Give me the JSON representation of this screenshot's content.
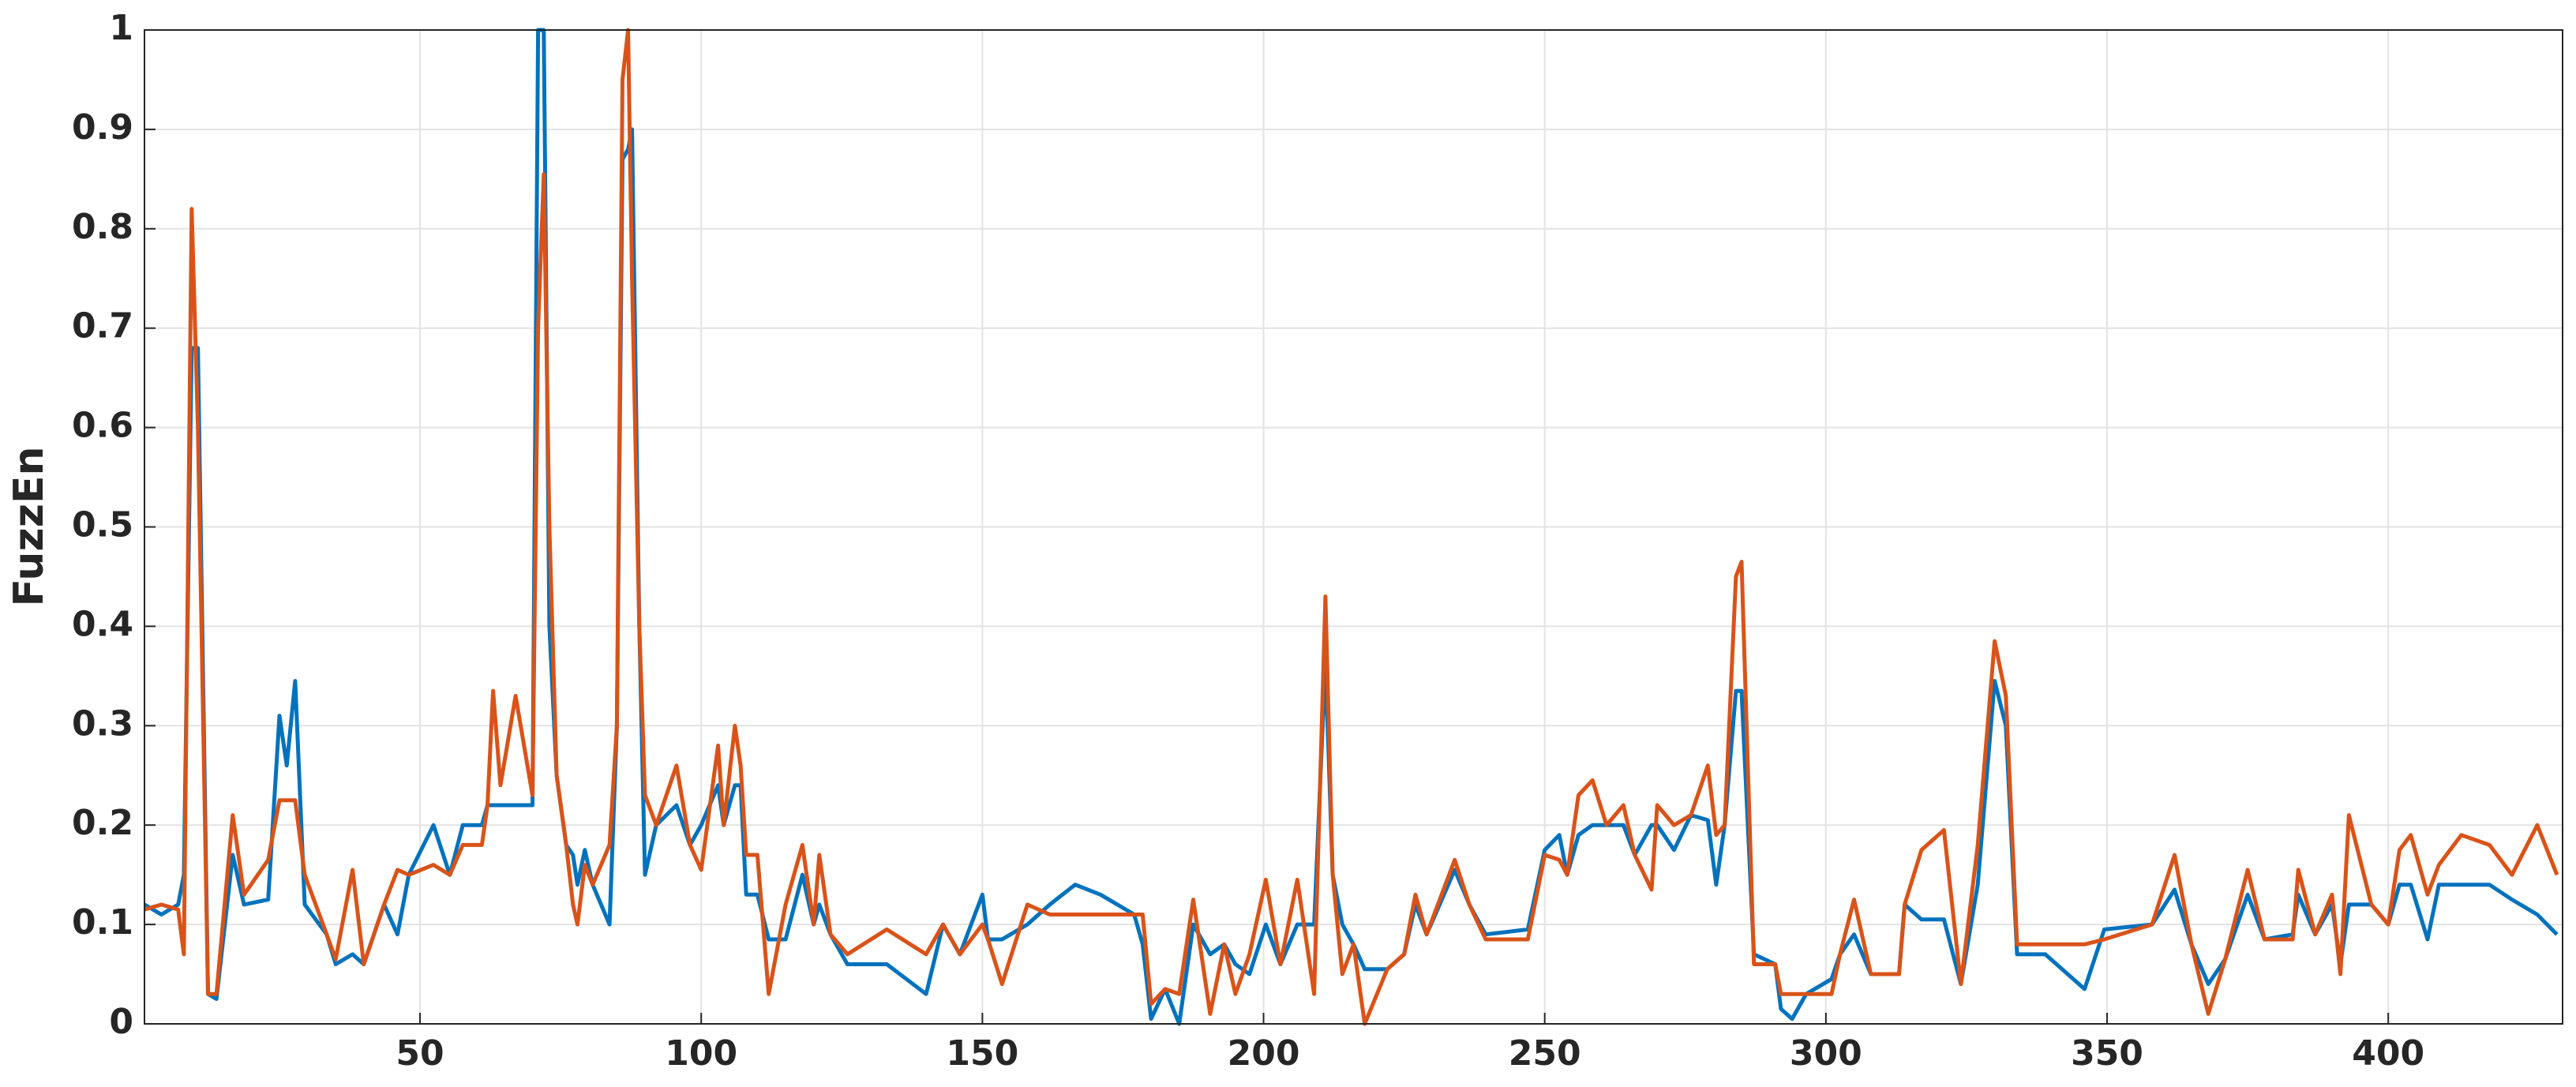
{
  "chart_data": {
    "type": "line",
    "ylabel": "FuzzEn",
    "x": [
      1,
      4,
      7,
      8,
      9.4,
      10.5,
      12.3,
      13.8,
      16.7,
      18.7,
      23,
      25,
      26.3,
      27.8,
      29.5,
      33.4,
      35,
      38,
      40,
      43.6,
      46,
      48,
      52.4,
      55.3,
      57.6,
      61,
      62,
      63,
      64.3,
      67,
      70,
      71,
      72,
      73,
      74.3,
      76,
      77.2,
      78,
      79.3,
      80.7,
      83.7,
      85,
      86,
      87,
      87.7,
      89,
      90,
      92,
      95.6,
      98,
      100,
      103,
      104,
      106,
      107,
      108,
      110,
      112,
      115,
      118,
      120,
      121,
      123,
      126,
      133,
      140,
      143,
      146,
      150,
      151,
      153.5,
      158,
      162,
      166.5,
      171,
      177,
      178.5,
      180,
      182.5,
      185,
      187.5,
      190.5,
      193,
      195,
      197.5,
      200.4,
      203,
      206,
      209,
      211,
      212.3,
      214,
      216,
      218,
      222,
      225,
      227,
      229,
      234,
      236.6,
      239.5,
      247,
      250,
      252.6,
      254,
      256,
      258.5,
      261,
      264,
      266,
      269,
      270,
      273,
      276,
      279,
      280.5,
      282,
      284,
      285,
      287.2,
      291,
      292,
      294,
      296.5,
      301,
      302.5,
      305,
      308,
      313,
      314,
      317,
      321,
      324,
      327,
      330,
      332,
      334,
      339,
      346,
      349.5,
      358,
      362,
      365,
      368,
      371,
      375,
      378,
      383,
      384,
      387,
      390,
      391.5,
      393,
      397,
      400,
      402,
      404,
      407,
      409,
      413,
      418,
      422,
      426.5,
      430
    ],
    "series": [
      {
        "color": "#0072bd",
        "values": [
          0.12,
          0.11,
          0.12,
          0.15,
          0.68,
          0.68,
          0.03,
          0.025,
          0.17,
          0.12,
          0.125,
          0.31,
          0.26,
          0.345,
          0.12,
          0.09,
          0.06,
          0.07,
          0.06,
          0.12,
          0.09,
          0.15,
          0.2,
          0.15,
          0.2,
          0.2,
          0.22,
          0.22,
          0.22,
          0.22,
          0.22,
          1.0,
          1.0,
          0.4,
          0.25,
          0.18,
          0.17,
          0.14,
          0.175,
          0.14,
          0.1,
          0.3,
          0.87,
          0.88,
          0.9,
          0.4,
          0.15,
          0.2,
          0.22,
          0.18,
          0.2,
          0.24,
          0.2,
          0.24,
          0.24,
          0.13,
          0.13,
          0.085,
          0.085,
          0.15,
          0.1,
          0.12,
          0.09,
          0.06,
          0.06,
          0.03,
          0.1,
          0.07,
          0.13,
          0.085,
          0.085,
          0.1,
          0.12,
          0.14,
          0.13,
          0.11,
          0.08,
          0.005,
          0.035,
          0,
          0.1,
          0.07,
          0.08,
          0.06,
          0.05,
          0.1,
          0.06,
          0.1,
          0.1,
          0.365,
          0.15,
          0.1,
          0.08,
          0.055,
          0.055,
          0.07,
          0.12,
          0.09,
          0.155,
          0.12,
          0.09,
          0.095,
          0.175,
          0.19,
          0.15,
          0.19,
          0.2,
          0.2,
          0.2,
          0.17,
          0.2,
          0.2,
          0.175,
          0.21,
          0.205,
          0.14,
          0.2,
          0.335,
          0.335,
          0.07,
          0.06,
          0.015,
          0.005,
          0.03,
          0.045,
          0.07,
          0.09,
          0.05,
          0.05,
          0.12,
          0.105,
          0.105,
          0.04,
          0.14,
          0.345,
          0.3,
          0.07,
          0.07,
          0.035,
          0.095,
          0.1,
          0.135,
          0.08,
          0.04,
          0.065,
          0.13,
          0.085,
          0.09,
          0.13,
          0.09,
          0.12,
          0.06,
          0.12,
          0.12,
          0.1,
          0.14,
          0.14,
          0.085,
          0.14,
          0.14,
          0.14,
          0.125,
          0.11,
          0.09
        ]
      },
      {
        "color": "#d95319",
        "values": [
          0.115,
          0.12,
          0.115,
          0.07,
          0.82,
          0.6,
          0.03,
          0.03,
          0.21,
          0.13,
          0.165,
          0.225,
          0.225,
          0.225,
          0.15,
          0.09,
          0.065,
          0.155,
          0.06,
          0.12,
          0.155,
          0.15,
          0.16,
          0.15,
          0.18,
          0.18,
          0.22,
          0.335,
          0.24,
          0.33,
          0.23,
          0.7,
          0.855,
          0.5,
          0.25,
          0.18,
          0.12,
          0.1,
          0.16,
          0.14,
          0.18,
          0.3,
          0.95,
          1.0,
          0.75,
          0.4,
          0.23,
          0.2,
          0.26,
          0.18,
          0.155,
          0.28,
          0.2,
          0.3,
          0.26,
          0.17,
          0.17,
          0.03,
          0.12,
          0.18,
          0.1,
          0.17,
          0.09,
          0.07,
          0.095,
          0.07,
          0.1,
          0.07,
          0.1,
          0.085,
          0.04,
          0.12,
          0.11,
          0.11,
          0.11,
          0.11,
          0.11,
          0.02,
          0.035,
          0.03,
          0.125,
          0.01,
          0.08,
          0.03,
          0.07,
          0.145,
          0.06,
          0.145,
          0.03,
          0.43,
          0.15,
          0.05,
          0.08,
          0,
          0.055,
          0.07,
          0.13,
          0.09,
          0.165,
          0.12,
          0.085,
          0.085,
          0.17,
          0.165,
          0.15,
          0.23,
          0.245,
          0.2,
          0.22,
          0.17,
          0.135,
          0.22,
          0.2,
          0.21,
          0.26,
          0.19,
          0.2,
          0.45,
          0.465,
          0.06,
          0.06,
          0.03,
          0.03,
          0.03,
          0.03,
          0.07,
          0.125,
          0.05,
          0.05,
          0.12,
          0.175,
          0.195,
          0.04,
          0.18,
          0.385,
          0.33,
          0.08,
          0.08,
          0.08,
          0.085,
          0.1,
          0.17,
          0.08,
          0.01,
          0.065,
          0.155,
          0.085,
          0.085,
          0.155,
          0.09,
          0.13,
          0.05,
          0.21,
          0.12,
          0.1,
          0.175,
          0.19,
          0.13,
          0.16,
          0.19,
          0.18,
          0.15,
          0.2,
          0.15
        ]
      }
    ],
    "xlim": [
      1,
      431
    ],
    "ylim": [
      0,
      1
    ],
    "xticks": [
      50,
      100,
      150,
      200,
      250,
      300,
      350,
      400
    ],
    "yticks": [
      0,
      0.1,
      0.2,
      0.3,
      0.4,
      0.5,
      0.6,
      0.7,
      0.8,
      0.9,
      1
    ],
    "grid": true
  }
}
